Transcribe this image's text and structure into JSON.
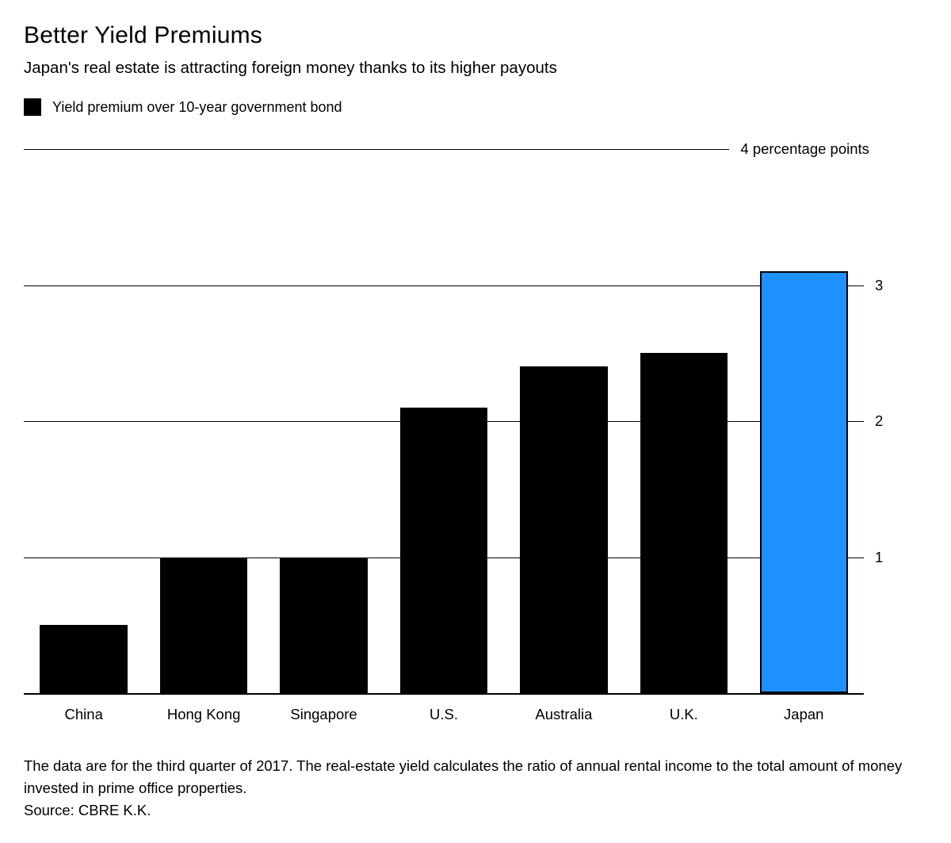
{
  "header": {
    "title": "Better Yield Premiums",
    "subtitle": "Japan's real estate is attracting foreign money thanks to its higher payouts",
    "legend": {
      "label": "Yield premium over 10-year government bond",
      "swatch_color": "#000000"
    }
  },
  "chart_data": {
    "type": "bar",
    "title": "Better Yield Premiums",
    "subtitle": "Japan's real estate is attracting foreign money thanks to its higher payouts",
    "legend_entries": [
      "Yield premium over 10-year government bond"
    ],
    "categories": [
      "China",
      "Hong Kong",
      "Singapore",
      "U.S.",
      "Australia",
      "U.K.",
      "Japan"
    ],
    "values": [
      0.5,
      1.0,
      1.0,
      2.1,
      2.4,
      2.5,
      3.1
    ],
    "bar_colors": [
      "#000000",
      "#000000",
      "#000000",
      "#000000",
      "#000000",
      "#000000",
      "#1e90ff"
    ],
    "highlight_category": "Japan",
    "highlight_color": "#1e90ff",
    "default_color": "#000000",
    "xlabel": "",
    "ylabel": "percentage points",
    "ylim": [
      0,
      4
    ],
    "yticks": [
      1,
      2,
      3,
      4
    ],
    "ytick_labels": [
      "1",
      "2",
      "3",
      "4 percentage points"
    ],
    "grid": true,
    "legend_position": "top-left"
  },
  "footer": {
    "note": "The data are for the third quarter of 2017. The real-estate yield calculates the ratio of annual rental income to the total amount of money invested in prime office properties.",
    "source": "Source: CBRE K.K."
  }
}
